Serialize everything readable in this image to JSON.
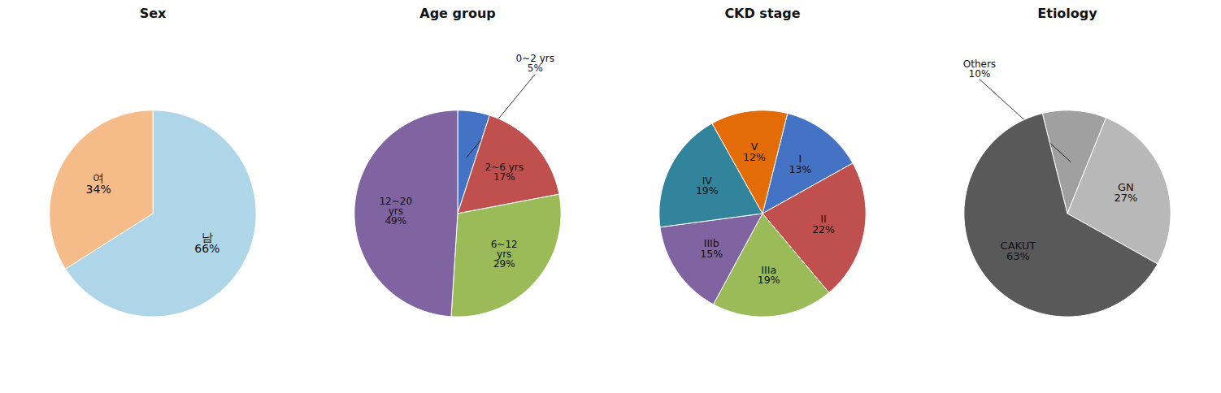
{
  "chart_data": [
    {
      "type": "pie",
      "title": "Sex",
      "categories": [
        "남",
        "여"
      ],
      "values": [
        66,
        34
      ],
      "value_labels": [
        "66%",
        "34%"
      ],
      "colors": [
        "#aed6e8",
        "#f5bc8a"
      ],
      "data_labels": true
    },
    {
      "type": "pie",
      "title": "Age group",
      "categories": [
        "0~2 yrs",
        "2~6 yrs",
        "6~12\nyrs",
        "12~20\nyrs"
      ],
      "values": [
        5,
        17,
        29,
        49
      ],
      "value_labels": [
        "5%",
        "17%",
        "29%",
        "49%"
      ],
      "colors": [
        "#4472c4",
        "#c0504d",
        "#9bbb59",
        "#8064a2"
      ],
      "data_labels": true
    },
    {
      "type": "pie",
      "title": "CKD stage",
      "categories": [
        "I",
        "II",
        "IIIa",
        "IIIb",
        "IV",
        "V"
      ],
      "values": [
        13,
        22,
        19,
        15,
        19,
        12
      ],
      "value_labels": [
        "13%",
        "22%",
        "19%",
        "15%",
        "19%",
        "12%"
      ],
      "colors": [
        "#4472c4",
        "#c0504d",
        "#9bbb59",
        "#8064a2",
        "#31849b",
        "#e36c09"
      ],
      "data_labels": true
    },
    {
      "type": "pie",
      "title": "Etiology",
      "categories": [
        "Others",
        "GN",
        "CAKUT"
      ],
      "values": [
        10,
        27,
        63
      ],
      "value_labels": [
        "10%",
        "27%",
        "63%"
      ],
      "colors": [
        "#a0a0a0",
        "#b8b8b8",
        "#595959"
      ],
      "data_labels": true
    }
  ]
}
